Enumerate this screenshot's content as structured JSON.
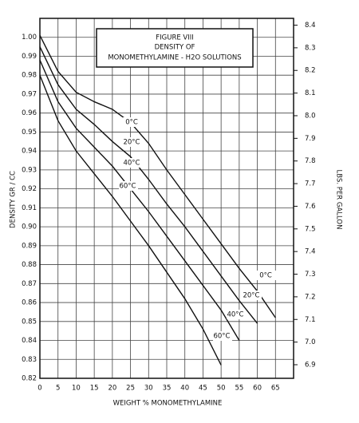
{
  "chart_data": {
    "type": "line",
    "title": "FIGURE VIII",
    "subtitle": "DENSITY OF",
    "caption": "MONOMETHYLAMINE - H2O SOLUTIONS",
    "x_label": "WEIGHT % MONOMETHYLAMINE",
    "y_label": "DENSITY GR / CC",
    "y2_label": "LBS. PER GALLON",
    "x": [
      0,
      5,
      10,
      15,
      20,
      25,
      30,
      35,
      40,
      45,
      50,
      55,
      60,
      65
    ],
    "series": [
      {
        "name": "0°C",
        "color": "#111111",
        "values": [
          1.001,
          0.982,
          0.971,
          0.966,
          0.962,
          0.955,
          0.944,
          0.93,
          0.917,
          0.904,
          0.891,
          0.878,
          0.866,
          0.852
        ]
      },
      {
        "name": "20°C",
        "color": "#111111",
        "values": [
          0.995,
          0.975,
          0.962,
          0.954,
          0.945,
          0.937,
          0.925,
          0.912,
          0.9,
          0.887,
          0.874,
          0.861,
          0.849,
          null
        ]
      },
      {
        "name": "40°C",
        "color": "#111111",
        "values": [
          0.988,
          0.966,
          0.952,
          0.942,
          0.932,
          0.92,
          0.908,
          0.895,
          0.882,
          0.869,
          0.856,
          0.84,
          null,
          null
        ]
      },
      {
        "name": "60°C",
        "color": "#111111",
        "values": [
          0.98,
          0.956,
          0.94,
          0.928,
          0.916,
          0.903,
          0.89,
          0.876,
          0.862,
          0.846,
          0.827,
          null,
          null,
          null
        ]
      }
    ],
    "xlim": [
      0,
      70
    ],
    "xticks": [
      0,
      5,
      10,
      15,
      20,
      25,
      30,
      35,
      40,
      45,
      50,
      55,
      60,
      65
    ],
    "ylim": [
      0.82,
      1.01
    ],
    "yticks": [
      0.82,
      0.83,
      0.84,
      0.85,
      0.86,
      0.87,
      0.88,
      0.89,
      {
        "value": 0.9,
        "label": "0.90"
      },
      0.91,
      0.92,
      0.93,
      0.94,
      0.95,
      0.96,
      0.97,
      0.98,
      0.99,
      {
        "value": 1,
        "label": "1.00"
      }
    ],
    "y2lim": [
      6.84,
      8.43
    ],
    "y2ticks": [
      6.9,
      {
        "value": 7,
        "label": "7.0"
      },
      7.1,
      7.2,
      7.3,
      7.4,
      7.5,
      7.6,
      7.7,
      7.8,
      7.9,
      {
        "value": 8,
        "label": "8.0"
      },
      8.1,
      8.2,
      8.3,
      8.4
    ],
    "grid": true
  }
}
